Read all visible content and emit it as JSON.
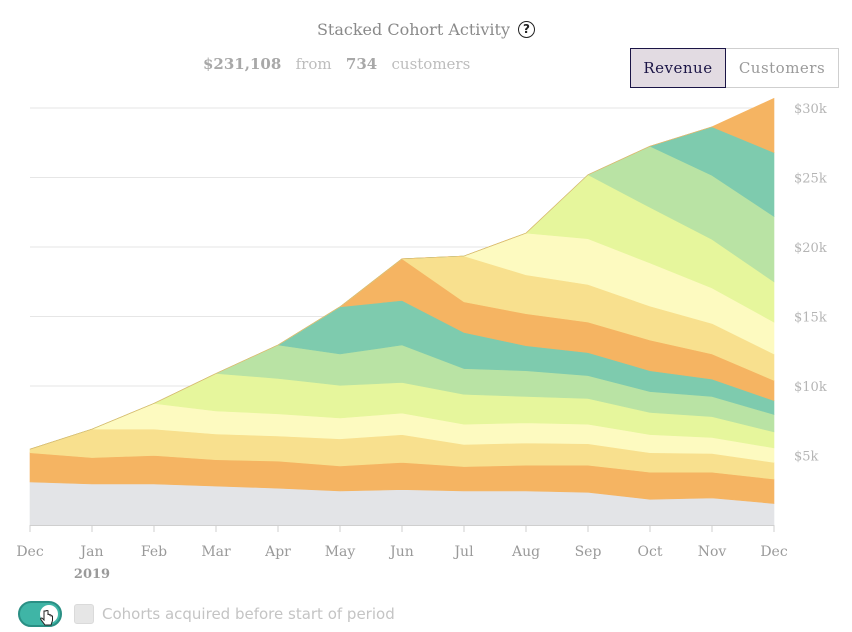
{
  "header": {
    "title": "Stacked Cohort Activity",
    "help_icon_glyph": "?",
    "summary_total": "$231,108",
    "summary_from": "from",
    "summary_count": "734",
    "summary_customers": "customers"
  },
  "toggle": {
    "revenue_label": "Revenue",
    "customers_label": "Customers",
    "active": "Revenue"
  },
  "footer": {
    "switch_on": true,
    "checkbox_label": "Cohorts acquired before start of period"
  },
  "chart_data": {
    "type": "area",
    "title": "Stacked Cohort Activity",
    "stacked": true,
    "x": [
      "Dec",
      "Jan",
      "Feb",
      "Mar",
      "Apr",
      "May",
      "Jun",
      "Jul",
      "Aug",
      "Sep",
      "Oct",
      "Nov",
      "Dec"
    ],
    "x_sublabels": [
      "",
      "2019",
      "",
      "",
      "",
      "",
      "",
      "",
      "",
      "",
      "",
      "",
      ""
    ],
    "ylim": [
      0,
      30000
    ],
    "yticks": [
      5000,
      10000,
      15000,
      20000,
      25000,
      30000
    ],
    "ytick_labels": [
      "$5k",
      "$10k",
      "$15k",
      "$20k",
      "$25k",
      "$30k"
    ],
    "y_axis_position": "right",
    "grid": true,
    "series": [
      {
        "values": [
          3100,
          2950,
          2950,
          2800,
          2650,
          2450,
          2550,
          2450,
          2450,
          2350,
          1850,
          1950,
          1550
        ],
        "color": "#e3e4e7"
      },
      {
        "values": [
          2100,
          1900,
          2050,
          1900,
          1950,
          1800,
          1950,
          1750,
          1850,
          1950,
          1950,
          1850,
          1750
        ],
        "color": "#f5b462"
      },
      {
        "values": [
          250,
          2050,
          1900,
          1850,
          1800,
          1950,
          2000,
          1600,
          1600,
          1550,
          1400,
          1350,
          1200
        ],
        "color": "#f8e08e"
      },
      {
        "values": [
          0,
          0,
          1850,
          1650,
          1600,
          1500,
          1550,
          1450,
          1450,
          1400,
          1300,
          1150,
          1050
        ],
        "color": "#fdfac0"
      },
      {
        "values": [
          0,
          0,
          0,
          2700,
          2550,
          2350,
          2200,
          2150,
          1900,
          1850,
          1600,
          1500,
          1150
        ],
        "color": "#e6f69c"
      },
      {
        "values": [
          0,
          0,
          0,
          0,
          2400,
          2250,
          2700,
          1850,
          1850,
          1650,
          1500,
          1450,
          1250
        ],
        "color": "#b9e3a4"
      },
      {
        "values": [
          0,
          0,
          0,
          0,
          0,
          3400,
          3200,
          2600,
          1800,
          1650,
          1500,
          1250,
          1000
        ],
        "color": "#7ecbae"
      },
      {
        "values": [
          0,
          0,
          0,
          0,
          0,
          0,
          3000,
          2200,
          2300,
          2200,
          2200,
          1800,
          1450
        ],
        "color": "#f5b462"
      },
      {
        "values": [
          0,
          0,
          0,
          0,
          0,
          0,
          0,
          3300,
          2800,
          2700,
          2450,
          2200,
          1900
        ],
        "color": "#f8e08e"
      },
      {
        "values": [
          0,
          0,
          0,
          0,
          0,
          0,
          0,
          0,
          3000,
          3300,
          3100,
          2550,
          2300
        ],
        "color": "#fdfac0"
      },
      {
        "values": [
          0,
          0,
          0,
          0,
          0,
          0,
          0,
          0,
          0,
          4600,
          4000,
          3500,
          2900
        ],
        "color": "#e6f69c"
      },
      {
        "values": [
          0,
          0,
          0,
          0,
          0,
          0,
          0,
          0,
          0,
          0,
          4400,
          4600,
          4700
        ],
        "color": "#b9e3a4"
      },
      {
        "values": [
          0,
          0,
          0,
          0,
          0,
          0,
          0,
          0,
          0,
          0,
          0,
          3500,
          4600
        ],
        "color": "#7ecbae"
      },
      {
        "values": [
          0,
          0,
          0,
          0,
          0,
          0,
          0,
          0,
          0,
          0,
          0,
          0,
          3900
        ],
        "color": "#f5b462"
      }
    ]
  }
}
